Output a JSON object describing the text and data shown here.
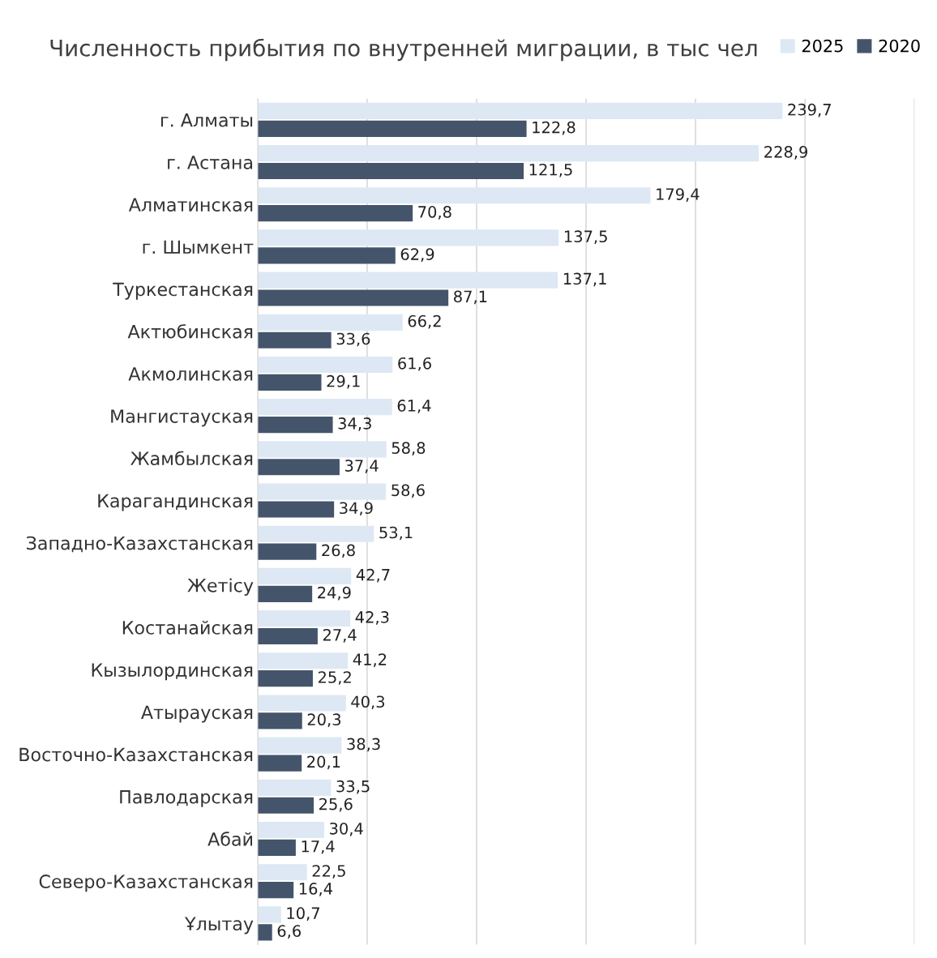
{
  "chart_data": {
    "type": "bar",
    "orientation": "horizontal",
    "title": "Численность прибытия по внутренней миграции, в тыс чел",
    "categories": [
      "г. Алматы",
      "г. Астана",
      "Алматинская",
      "г. Шымкент",
      "Туркестанская",
      "Актюбинская",
      "Акмолинская",
      "Мангистауская",
      "Жамбылская",
      "Карагандинская",
      "Западно-Казахстанская",
      "Жетісу",
      "Костанайская",
      "Кызылординская",
      "Атырауская",
      "Восточно-Казахстанская",
      "Павлодарская",
      "Абай",
      "Северо-Казахстанская",
      "Ұлытау"
    ],
    "series": [
      {
        "name": "2025",
        "color": "#dde8f4",
        "values": [
          239.7,
          228.9,
          179.4,
          137.5,
          137.1,
          66.2,
          61.6,
          61.4,
          58.8,
          58.6,
          53.1,
          42.7,
          42.3,
          41.2,
          40.3,
          38.3,
          33.5,
          30.4,
          22.5,
          10.7
        ],
        "value_labels": [
          "239,7",
          "228,9",
          "179,4",
          "137,5",
          "137,1",
          "66,2",
          "61,6",
          "61,4",
          "58,8",
          "58,6",
          "53,1",
          "42,7",
          "42,3",
          "41,2",
          "40,3",
          "38,3",
          "33,5",
          "30,4",
          "22,5",
          "10,7"
        ]
      },
      {
        "name": "2020",
        "color": "#44546a",
        "values": [
          122.8,
          121.5,
          70.8,
          62.9,
          87.1,
          33.6,
          29.1,
          34.3,
          37.4,
          34.9,
          26.8,
          24.9,
          27.4,
          25.2,
          20.3,
          20.1,
          25.6,
          17.4,
          16.4,
          6.6
        ],
        "value_labels": [
          "122,8",
          "121,5",
          "70,8",
          "62,9",
          "87,1",
          "33,6",
          "29,1",
          "34,3",
          "37,4",
          "34,9",
          "26,8",
          "24,9",
          "27,4",
          "25,2",
          "20,3",
          "20,1",
          "25,6",
          "17,4",
          "16,4",
          "6,6"
        ]
      }
    ],
    "xlim": [
      0,
      300
    ],
    "xticks": [
      {
        "value": 0,
        "label": null
      },
      {
        "value": 50,
        "label": null
      },
      {
        "value": 100,
        "label": null
      },
      {
        "value": 150,
        "label": null
      },
      {
        "value": 200,
        "label": null
      },
      {
        "value": 250,
        "label": null
      },
      {
        "value": 300,
        "label": null
      }
    ],
    "tick_labels": "y",
    "grid": "x",
    "legend": "top right"
  }
}
